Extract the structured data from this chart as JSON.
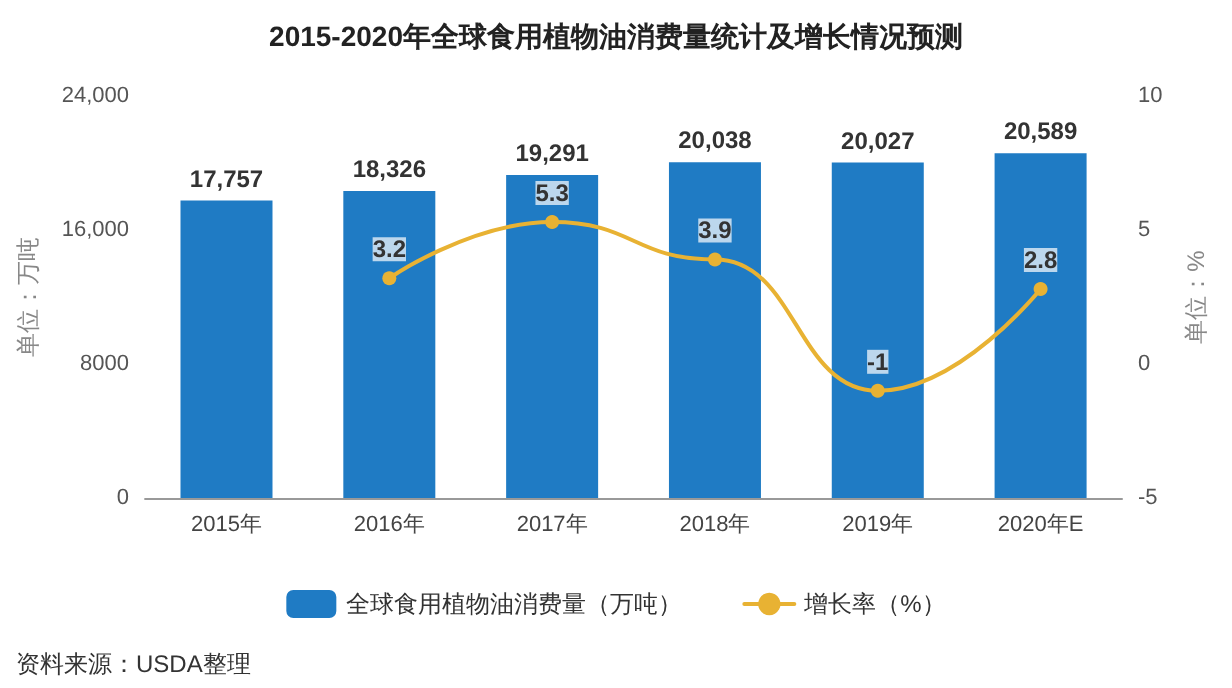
{
  "chart_data": {
    "type": "bar",
    "title": "2015-2020年全球食用植物油消费量统计及增长情况预测",
    "categories": [
      "2015年",
      "2016年",
      "2017年",
      "2018年",
      "2019年",
      "2020年E"
    ],
    "series": [
      {
        "name": "全球食用植物油消费量（万吨）",
        "color": "#1f7bc4",
        "values": [
          17757,
          18326,
          19291,
          20038,
          20027,
          20589
        ],
        "value_labels": [
          "17,757",
          "18,326",
          "19,291",
          "20,038",
          "20,027",
          "20,589"
        ]
      },
      {
        "name": "增长率（%）",
        "type": "line",
        "axis": "y2",
        "color": "#e8b233",
        "values": [
          null,
          3.2,
          5.3,
          3.9,
          -1,
          2.8
        ]
      }
    ],
    "ylabel": "单位：万吨",
    "y2label": "单位：%",
    "ylim": [
      0,
      24000
    ],
    "yticks": [
      0,
      8000,
      {
        "value": 16000,
        "label": "16,000"
      },
      {
        "value": 24000,
        "label": "24,000"
      }
    ],
    "y2lim": [
      -5,
      10
    ],
    "y2ticks": [
      -5,
      0,
      5,
      10
    ],
    "data_labels": true,
    "legend": "bottom",
    "marker": "circle",
    "line_style": "solid",
    "annotations": [
      "资料来源：USDA整理"
    ]
  }
}
